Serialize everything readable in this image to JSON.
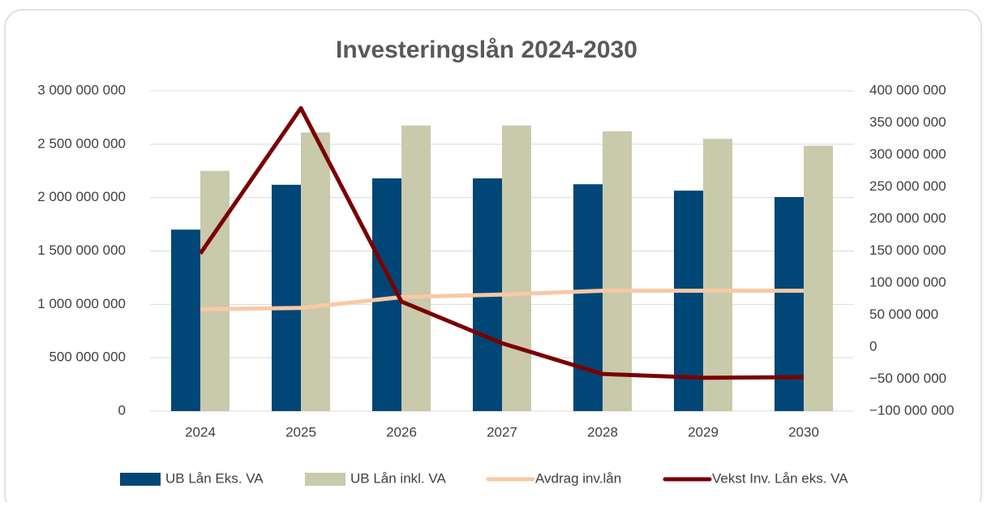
{
  "chart_data": {
    "type": "bar",
    "title": "Investeringslån 2024-2030",
    "categories": [
      "2024",
      "2025",
      "2026",
      "2027",
      "2028",
      "2029",
      "2030"
    ],
    "series": [
      {
        "name": "UB Lån Eks. VA",
        "type": "bar",
        "color": "#004677",
        "values": [
          1700000000,
          2120000000,
          2180000000,
          2180000000,
          2125000000,
          2065000000,
          2005000000
        ]
      },
      {
        "name": "UB Lån inkl. VA",
        "type": "bar",
        "color": "#c9c9ab",
        "values": [
          2250000000,
          2610000000,
          2675000000,
          2675000000,
          2620000000,
          2550000000,
          2485000000
        ]
      },
      {
        "name": "Avdrag inv.lån",
        "type": "line",
        "axis": "y2",
        "color": "#f8c9a5",
        "values": [
          59000000,
          61000000,
          78000000,
          82000000,
          88000000,
          88000000,
          88000000
        ]
      },
      {
        "name": "Vekst Inv. Lån eks. VA",
        "type": "line",
        "axis": "y2",
        "color": "#7a0000",
        "values": [
          146000000,
          373000000,
          71000000,
          6000000,
          -42000000,
          -48000000,
          -47000000
        ]
      }
    ],
    "ylim": [
      0,
      3000000000
    ],
    "yticks": [
      0,
      {
        "value": 500000000,
        "label": "500 000 000"
      },
      {
        "value": 1000000000,
        "label": "1 000 000 000"
      },
      {
        "value": 1500000000,
        "label": "1 500 000 000"
      },
      {
        "value": 2000000000,
        "label": "2 000 000 000"
      },
      {
        "value": 2500000000,
        "label": "2 500 000 000"
      },
      {
        "value": 3000000000,
        "label": "3 000 000 000"
      }
    ],
    "y2lim": [
      -100000000,
      400000000
    ],
    "y2ticks": [
      {
        "value": -100000000,
        "label": "−100 000 000"
      },
      {
        "value": -50000000,
        "label": "−50 000 000"
      },
      0,
      {
        "value": 50000000,
        "label": "50 000 000"
      },
      {
        "value": 100000000,
        "label": "100 000 000"
      },
      {
        "value": 150000000,
        "label": "150 000 000"
      },
      {
        "value": 200000000,
        "label": "200 000 000"
      },
      {
        "value": 250000000,
        "label": "250 000 000"
      },
      {
        "value": 300000000,
        "label": "300 000 000"
      },
      {
        "value": 350000000,
        "label": "350 000 000"
      },
      {
        "value": 400000000,
        "label": "400 000 000"
      }
    ],
    "grid": true,
    "legend": "bottom"
  }
}
